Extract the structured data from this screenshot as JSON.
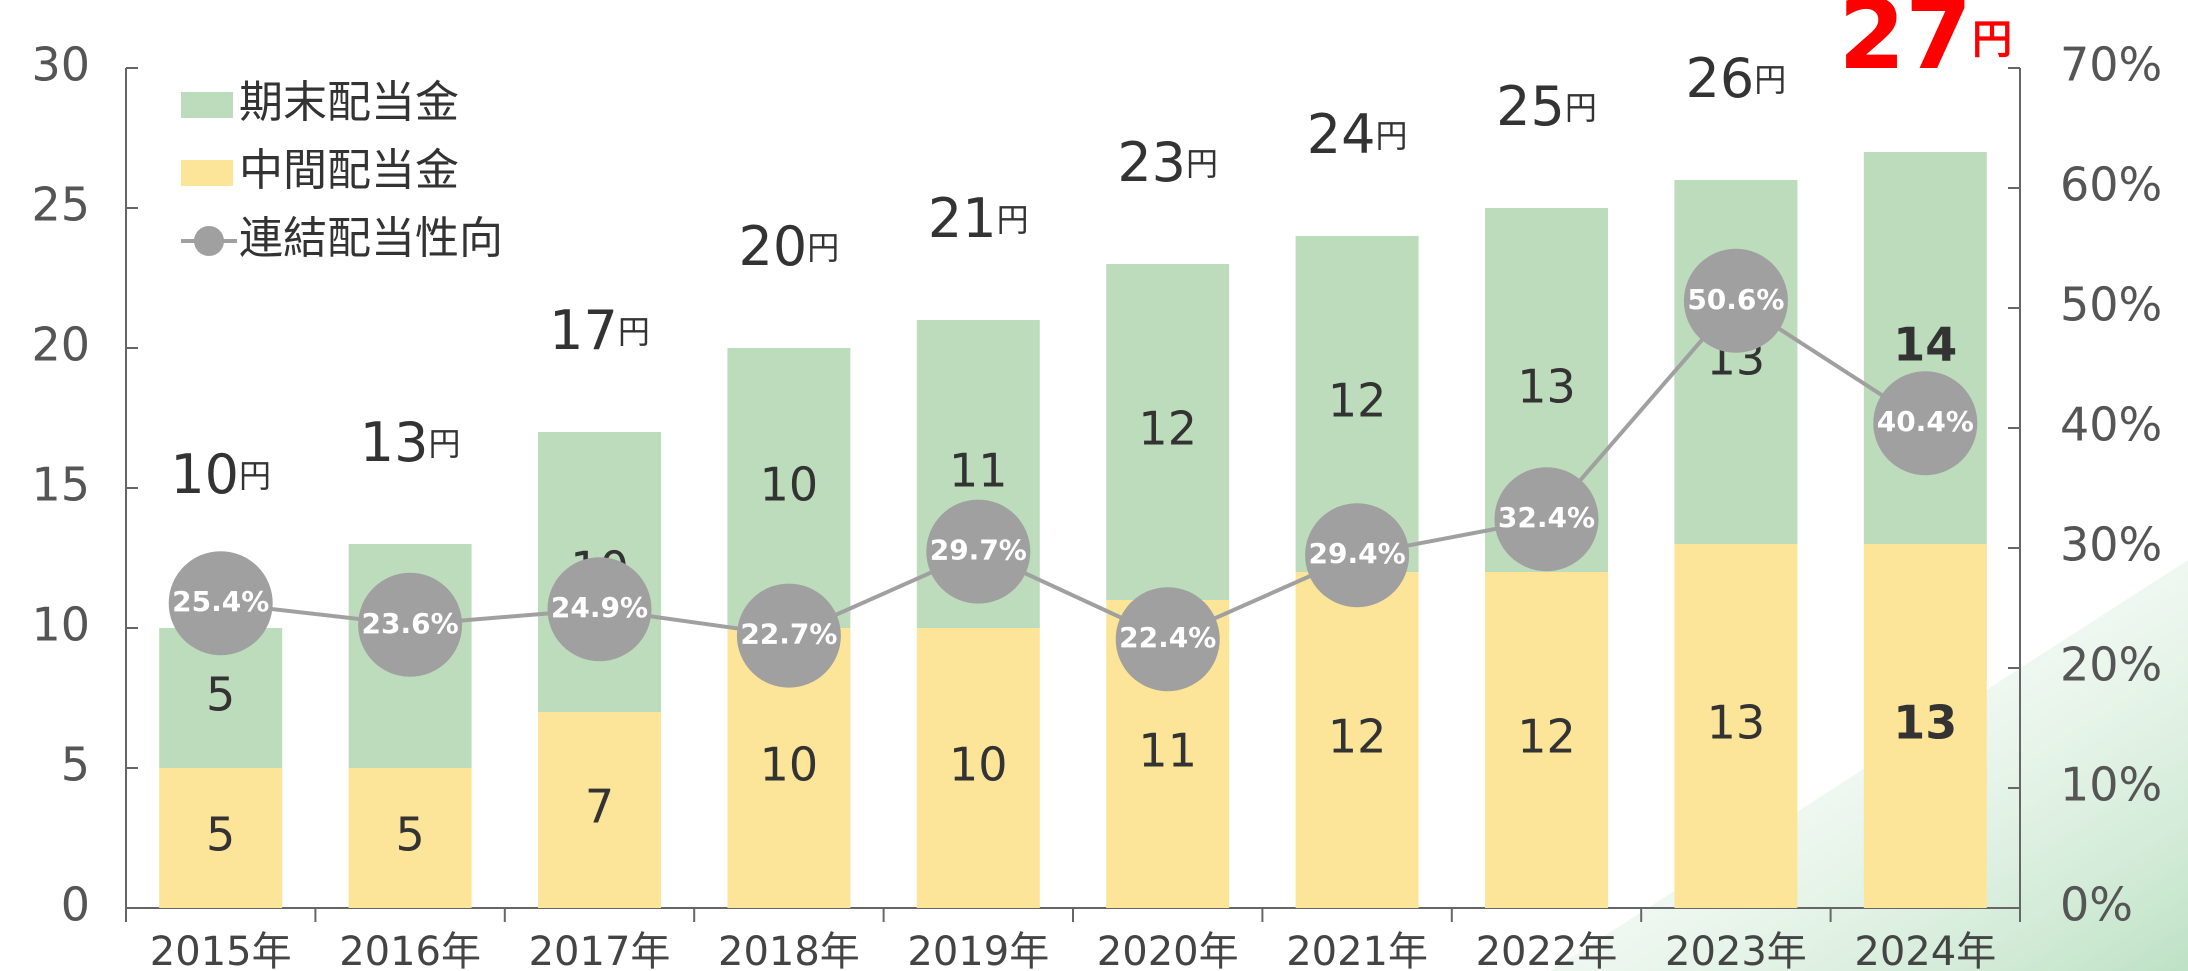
{
  "chart_data": {
    "type": "bar",
    "stacked": true,
    "categories": [
      "2015年",
      "2016年",
      "2017年",
      "2018年",
      "2019年",
      "2020年",
      "2021年",
      "2022年",
      "2023年",
      "2024年"
    ],
    "series": [
      {
        "name": "中間配当金",
        "color": "#fce598",
        "values": [
          5,
          5,
          7,
          10,
          10,
          11,
          12,
          12,
          13,
          13
        ]
      },
      {
        "name": "期末配当金",
        "color": "#bcdcbb",
        "values": [
          5,
          8,
          10,
          10,
          11,
          12,
          12,
          13,
          13,
          14
        ]
      },
      {
        "name": "連結配当性向",
        "type": "line",
        "axis": "y2",
        "color": "#a0a0a0",
        "values": [
          25.4,
          23.6,
          24.9,
          22.7,
          29.7,
          22.4,
          29.4,
          32.4,
          50.6,
          40.4
        ],
        "value_labels": [
          "25.4%",
          "23.6%",
          "24.9%",
          "22.7%",
          "29.7%",
          "22.4%",
          "29.4%",
          "32.4%",
          "50.6%",
          "40.4%"
        ]
      }
    ],
    "totals": [
      10,
      13,
      17,
      20,
      21,
      23,
      24,
      25,
      26,
      27
    ],
    "total_unit": "円",
    "ylim": [
      0,
      30
    ],
    "yticks": [
      0,
      5,
      10,
      15,
      20,
      25,
      30
    ],
    "y2lim": [
      0,
      70
    ],
    "y2ticks": [
      {
        "value": 0,
        "label": "0%"
      },
      {
        "value": 10,
        "label": "10%"
      },
      {
        "value": 20,
        "label": "20%"
      },
      {
        "value": 30,
        "label": "30%"
      },
      {
        "value": 40,
        "label": "40%"
      },
      {
        "value": 50,
        "label": "50%"
      },
      {
        "value": 60,
        "label": "60%"
      },
      {
        "value": 70,
        "label": "70%"
      }
    ],
    "legend": "top-left"
  }
}
